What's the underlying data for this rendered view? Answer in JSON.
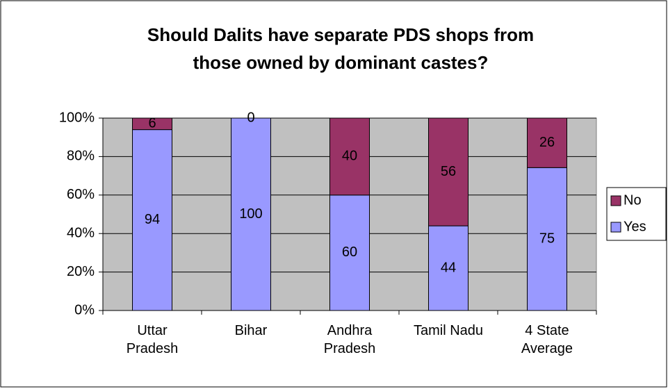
{
  "chart_data": {
    "type": "bar",
    "stacked": "percent",
    "title": "Should Dalits have separate PDS shops from those owned by dominant castes?",
    "categories": [
      "Uttar Pradesh",
      "Bihar",
      "Andhra Pradesh",
      "Tamil Nadu",
      "4 State Average"
    ],
    "series": [
      {
        "name": "Yes",
        "color": "#9999ff",
        "values": [
          94,
          100,
          60,
          44,
          75
        ]
      },
      {
        "name": "No",
        "color": "#993366",
        "values": [
          6,
          0,
          40,
          56,
          26
        ]
      }
    ],
    "ylim": [
      0,
      100
    ],
    "yticks": [
      {
        "value": 0,
        "label": "0%"
      },
      {
        "value": 20,
        "label": "20%"
      },
      {
        "value": 40,
        "label": "40%"
      },
      {
        "value": 60,
        "label": "60%"
      },
      {
        "value": 80,
        "label": "80%"
      },
      {
        "value": 100,
        "label": "100%"
      }
    ],
    "grid": true,
    "legend": "right"
  }
}
